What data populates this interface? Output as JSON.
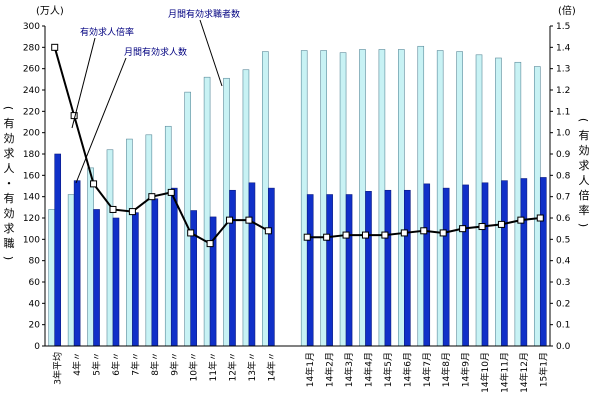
{
  "chart_data": {
    "type": "bar",
    "left_axis_unit": "(万人)",
    "right_axis_unit": "(倍)",
    "left_axis_label": "(有効求人・有効求職)",
    "right_axis_label": "(有効求人倍率)",
    "left_ylim": [
      0,
      300
    ],
    "right_ylim": [
      0,
      1.5
    ],
    "left_ticks": [
      "300",
      "280",
      "260",
      "240",
      "220",
      "200",
      "180",
      "160",
      "140",
      "120",
      "100",
      "80",
      "60",
      "40",
      "20",
      "0"
    ],
    "right_ticks": [
      "1.5",
      "1.4",
      "1.3",
      "1.2",
      "1.1",
      "1.0",
      "0.9",
      "0.8",
      "0.7",
      "0.6",
      "0.5",
      "0.4",
      "0.3",
      "0.2",
      "0.1",
      "0.0"
    ],
    "annotations": [
      "有効求人倍率",
      "月間有効求職者数",
      "月間有効求人数"
    ],
    "categories": [
      "3年平均",
      "4年〃",
      "5年〃",
      "6年〃",
      "7年〃",
      "8年〃",
      "9年〃",
      "10年〃",
      "11年〃",
      "12年〃",
      "13年〃",
      "14年〃",
      "",
      "14年1月",
      "14年2月",
      "14年3月",
      "14年4月",
      "14年5月",
      "14年6月",
      "14年7月",
      "14年8月",
      "14年9月",
      "14年10月",
      "14年11月",
      "14年12月",
      "15年1月"
    ],
    "series": [
      {
        "name": "月間有効求職者数",
        "axis": "left",
        "kind": "bar",
        "color": "#c8f2f4",
        "values": [
          128,
          142,
          167,
          184,
          194,
          198,
          206,
          238,
          252,
          251,
          259,
          276,
          null,
          277,
          277,
          275,
          278,
          278,
          278,
          281,
          277,
          276,
          273,
          270,
          266,
          262
        ]
      },
      {
        "name": "月間有効求人数",
        "axis": "left",
        "kind": "bar",
        "color": "#1030c8",
        "values": [
          180,
          155,
          128,
          120,
          125,
          138,
          148,
          127,
          121,
          146,
          153,
          148,
          null,
          142,
          142,
          142,
          145,
          146,
          146,
          152,
          148,
          151,
          153,
          155,
          157,
          158
        ]
      },
      {
        "name": "有効求人倍率",
        "axis": "right",
        "kind": "line",
        "color": "#000000",
        "values": [
          1.4,
          1.08,
          0.76,
          0.64,
          0.63,
          0.7,
          0.72,
          0.53,
          0.48,
          0.59,
          0.59,
          0.54,
          null,
          0.51,
          0.51,
          0.52,
          0.52,
          0.52,
          0.53,
          0.54,
          0.53,
          0.55,
          0.56,
          0.57,
          0.59,
          0.6
        ]
      }
    ]
  }
}
